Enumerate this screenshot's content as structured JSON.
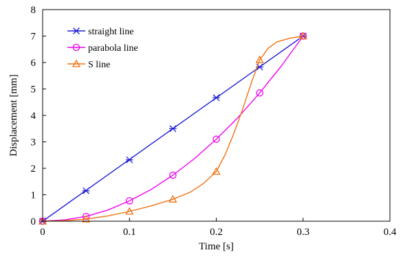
{
  "chart_data": {
    "type": "line",
    "xlabel": "Time [s]",
    "ylabel": "Displacement [mm]",
    "xlim": [
      0,
      0.4
    ],
    "ylim": [
      0,
      8
    ],
    "xticks": [
      0,
      0.1,
      0.2,
      0.3,
      0.4
    ],
    "xtick_labels": [
      "0",
      "0.1",
      "0.2",
      "0.3",
      "0.4"
    ],
    "yticks": [
      0,
      1,
      2,
      3,
      4,
      5,
      6,
      7,
      8
    ],
    "ytick_labels": [
      "0",
      "1",
      "2",
      "3",
      "4",
      "5",
      "6",
      "7",
      "8"
    ],
    "grid": false,
    "legend_position": "top-left",
    "series": [
      {
        "name": "straight line",
        "color": "#1f1fd6",
        "marker": "asterisk",
        "x": [
          0,
          0.05,
          0.1,
          0.15,
          0.2,
          0.25,
          0.3
        ],
        "values": [
          0,
          1.15,
          2.32,
          3.5,
          4.67,
          5.83,
          7.0
        ],
        "curve": [
          [
            0,
            0
          ],
          [
            0.3,
            7.0
          ]
        ]
      },
      {
        "name": "parabola line",
        "color": "#ee00ee",
        "marker": "circle",
        "x": [
          0,
          0.05,
          0.1,
          0.15,
          0.2,
          0.25,
          0.3
        ],
        "values": [
          0,
          0.18,
          0.77,
          1.74,
          3.1,
          4.85,
          7.0
        ],
        "curve": [
          [
            0,
            0
          ],
          [
            0.025,
            0.05
          ],
          [
            0.05,
            0.18
          ],
          [
            0.075,
            0.42
          ],
          [
            0.1,
            0.77
          ],
          [
            0.125,
            1.2
          ],
          [
            0.15,
            1.74
          ],
          [
            0.175,
            2.37
          ],
          [
            0.2,
            3.1
          ],
          [
            0.225,
            3.92
          ],
          [
            0.25,
            4.85
          ],
          [
            0.275,
            5.87
          ],
          [
            0.3,
            7.0
          ]
        ]
      },
      {
        "name": "S line",
        "color": "#f07010",
        "marker": "triangle",
        "x": [
          0,
          0.05,
          0.1,
          0.15,
          0.2,
          0.25,
          0.3
        ],
        "values": [
          0,
          0.08,
          0.37,
          0.83,
          1.88,
          6.1,
          7.0
        ],
        "curve": [
          [
            0,
            0
          ],
          [
            0.025,
            0.02
          ],
          [
            0.05,
            0.08
          ],
          [
            0.075,
            0.2
          ],
          [
            0.1,
            0.37
          ],
          [
            0.125,
            0.58
          ],
          [
            0.15,
            0.83
          ],
          [
            0.17,
            1.1
          ],
          [
            0.185,
            1.42
          ],
          [
            0.2,
            1.88
          ],
          [
            0.21,
            2.5
          ],
          [
            0.22,
            3.3
          ],
          [
            0.23,
            4.2
          ],
          [
            0.24,
            5.2
          ],
          [
            0.25,
            6.1
          ],
          [
            0.26,
            6.55
          ],
          [
            0.27,
            6.78
          ],
          [
            0.285,
            6.92
          ],
          [
            0.3,
            7.0
          ]
        ]
      }
    ]
  }
}
